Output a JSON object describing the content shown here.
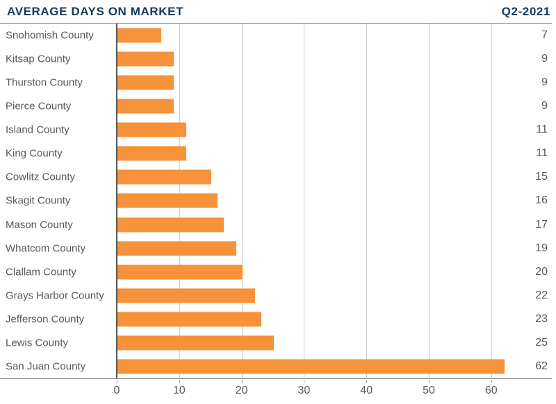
{
  "header": {
    "title": "AVERAGE DAYS ON MARKET",
    "period": "Q2-2021"
  },
  "colors": {
    "bar": "#F5923A",
    "title": "#14395C",
    "label": "#55585B",
    "gridline": "#CCCCCC",
    "zero_line": "#54585C",
    "plot_border": "#8C8C8C"
  },
  "chart_data": {
    "type": "bar",
    "orientation": "horizontal",
    "title": "AVERAGE DAYS ON MARKET",
    "subtitle": "Q2-2021",
    "xlabel": "",
    "ylabel": "",
    "categories": [
      "Snohomish County",
      "Kitsap County",
      "Thurston County",
      "Pierce County",
      "Island County",
      "King County",
      "Cowlitz County",
      "Skagit County",
      "Mason County",
      "Whatcom County",
      "Clallam County",
      "Grays Harbor County",
      "Jefferson County",
      "Lewis County",
      "San Juan County"
    ],
    "values": [
      7,
      9,
      9,
      9,
      11,
      11,
      15,
      16,
      17,
      19,
      20,
      22,
      23,
      25,
      62
    ],
    "xticks": [
      0,
      10,
      20,
      30,
      40,
      50,
      60
    ],
    "xlim": [
      0,
      70
    ],
    "grid": true,
    "value_labels_position": "right-edge",
    "legend": false
  }
}
